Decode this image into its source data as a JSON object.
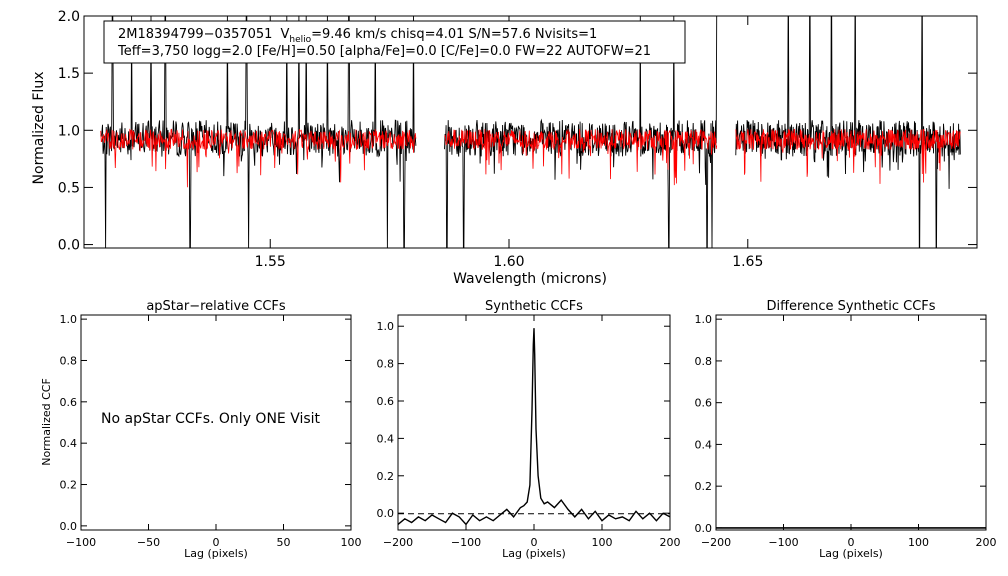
{
  "chart_data": [
    {
      "type": "line",
      "id": "spectrum",
      "title": "",
      "xlabel": "Wavelength (microns)",
      "ylabel": "Normalized Flux",
      "xlim": [
        1.511,
        1.698
      ],
      "ylim": [
        -0.03,
        2.0
      ],
      "x_ticks": [
        {
          "v": 1.55,
          "label": "1.55"
        },
        {
          "v": 1.6,
          "label": "1.60"
        },
        {
          "v": 1.65,
          "label": "1.65"
        }
      ],
      "y_ticks": [
        {
          "v": 0.0,
          "label": "0.0"
        },
        {
          "v": 0.5,
          "label": "0.5"
        },
        {
          "v": 1.0,
          "label": "1.0"
        },
        {
          "v": 1.5,
          "label": "1.5"
        },
        {
          "v": 2.0,
          "label": "2.0"
        }
      ],
      "legend": {
        "line1_id": "2M18394799−0357051",
        "line1_vhelio_prefix": "V",
        "line1_vhelio_sub": "helio",
        "line1_rest": "=9.46 km/s  chisq=4.01  S/N=57.6  Nvisits=1",
        "line2": "Teff=3,750 logg=2.0 [Fe/H]=0.50 [alpha/Fe]=0.0 [C/Fe]=0.0 FW=22 AUTOFW=21"
      },
      "chips": [
        [
          1.5145,
          1.5805
        ],
        [
          1.5865,
          1.6435
        ],
        [
          1.6475,
          1.6945
        ]
      ],
      "series": [
        {
          "name": "observed",
          "color": "#000000",
          "mean": 0.93,
          "noise": 0.16
        },
        {
          "name": "model",
          "color": "#ff0000",
          "mean": 0.92,
          "noise": 0.09
        }
      ],
      "spikes": [
        1.517,
        1.521,
        1.525,
        1.528,
        1.541,
        1.545,
        1.5535,
        1.556,
        1.5575,
        1.562,
        1.5665,
        1.572,
        1.58,
        1.6275,
        1.6345,
        1.6435,
        1.6585,
        1.663,
        1.6675,
        1.6725,
        1.6865
      ],
      "dips": [
        1.5155,
        1.5332,
        1.5455,
        1.5745,
        1.578,
        1.587,
        1.5905,
        1.6335,
        1.6415,
        1.6425,
        1.686,
        1.6895
      ]
    },
    {
      "type": "line",
      "id": "apstar",
      "title": "apStar−relative CCFs",
      "xlabel": "Lag (pixels)",
      "ylabel": "Normalized CCF",
      "xlim": [
        -100,
        100
      ],
      "ylim": [
        -0.02,
        1.02
      ],
      "x_ticks": [
        {
          "v": -100,
          "label": "−100"
        },
        {
          "v": -50,
          "label": "−50"
        },
        {
          "v": 0,
          "label": "0"
        },
        {
          "v": 50,
          "label": "50"
        },
        {
          "v": 100,
          "label": "100"
        }
      ],
      "y_ticks": [
        {
          "v": 0.0,
          "label": "0.0"
        },
        {
          "v": 0.2,
          "label": "0.2"
        },
        {
          "v": 0.4,
          "label": "0.4"
        },
        {
          "v": 0.6,
          "label": "0.6"
        },
        {
          "v": 0.8,
          "label": "0.8"
        },
        {
          "v": 1.0,
          "label": "1.0"
        }
      ],
      "annotation": "No apStar CCFs.  Only ONE Visit",
      "series": []
    },
    {
      "type": "line",
      "id": "synthetic",
      "title": "Synthetic CCFs",
      "xlabel": "Lag (pixels)",
      "ylabel": "",
      "xlim": [
        -200,
        200
      ],
      "ylim": [
        -0.09,
        1.06
      ],
      "x_ticks": [
        {
          "v": -200,
          "label": "−200"
        },
        {
          "v": -100,
          "label": "−100"
        },
        {
          "v": 0,
          "label": "0"
        },
        {
          "v": 100,
          "label": "100"
        },
        {
          "v": 200,
          "label": "200"
        }
      ],
      "y_ticks": [
        {
          "v": 0.0,
          "label": "0.0"
        },
        {
          "v": 0.2,
          "label": "0.2"
        },
        {
          "v": 0.4,
          "label": "0.4"
        },
        {
          "v": 0.6,
          "label": "0.6"
        },
        {
          "v": 0.8,
          "label": "0.8"
        },
        {
          "v": 1.0,
          "label": "1.0"
        }
      ],
      "baseline": -0.003,
      "series": [
        {
          "name": "ccf",
          "x": [
            -200,
            -190,
            -180,
            -170,
            -160,
            -150,
            -140,
            -130,
            -120,
            -110,
            -100,
            -90,
            -80,
            -70,
            -60,
            -50,
            -40,
            -30,
            -20,
            -15,
            -10,
            -6,
            -3,
            -1,
            0,
            1,
            3,
            6,
            10,
            15,
            20,
            30,
            40,
            50,
            60,
            70,
            80,
            90,
            100,
            110,
            120,
            130,
            140,
            150,
            160,
            170,
            180,
            190,
            200
          ],
          "y": [
            -0.06,
            -0.03,
            -0.05,
            -0.02,
            -0.04,
            -0.01,
            -0.03,
            -0.05,
            0.0,
            -0.02,
            -0.06,
            -0.01,
            -0.04,
            -0.02,
            -0.04,
            -0.01,
            0.02,
            -0.02,
            0.03,
            0.04,
            0.06,
            0.15,
            0.55,
            0.9,
            0.99,
            0.85,
            0.45,
            0.2,
            0.08,
            0.05,
            0.06,
            0.03,
            0.07,
            0.02,
            -0.02,
            0.02,
            -0.03,
            0.01,
            -0.04,
            -0.01,
            -0.03,
            -0.02,
            -0.04,
            0.01,
            -0.03,
            0.0,
            -0.04,
            0.0,
            -0.02
          ]
        }
      ]
    },
    {
      "type": "line",
      "id": "difference",
      "title": "Difference Synthetic CCFs",
      "xlabel": "Lag (pixels)",
      "ylabel": "",
      "xlim": [
        -200,
        200
      ],
      "ylim": [
        -0.01,
        1.02
      ],
      "x_ticks": [
        {
          "v": -200,
          "label": "−200"
        },
        {
          "v": -100,
          "label": "−100"
        },
        {
          "v": 0,
          "label": "0"
        },
        {
          "v": 100,
          "label": "100"
        },
        {
          "v": 200,
          "label": "200"
        }
      ],
      "y_ticks": [
        {
          "v": 0.0,
          "label": "0.0"
        },
        {
          "v": 0.2,
          "label": "0.2"
        },
        {
          "v": 0.4,
          "label": "0.4"
        },
        {
          "v": 0.6,
          "label": "0.6"
        },
        {
          "v": 0.8,
          "label": "0.8"
        },
        {
          "v": 1.0,
          "label": "1.0"
        }
      ],
      "series": [
        {
          "name": "diff",
          "x": [
            -200,
            -100,
            0,
            100,
            200
          ],
          "y": [
            0.0,
            0.0,
            0.0,
            0.0,
            0.0
          ]
        }
      ]
    }
  ]
}
